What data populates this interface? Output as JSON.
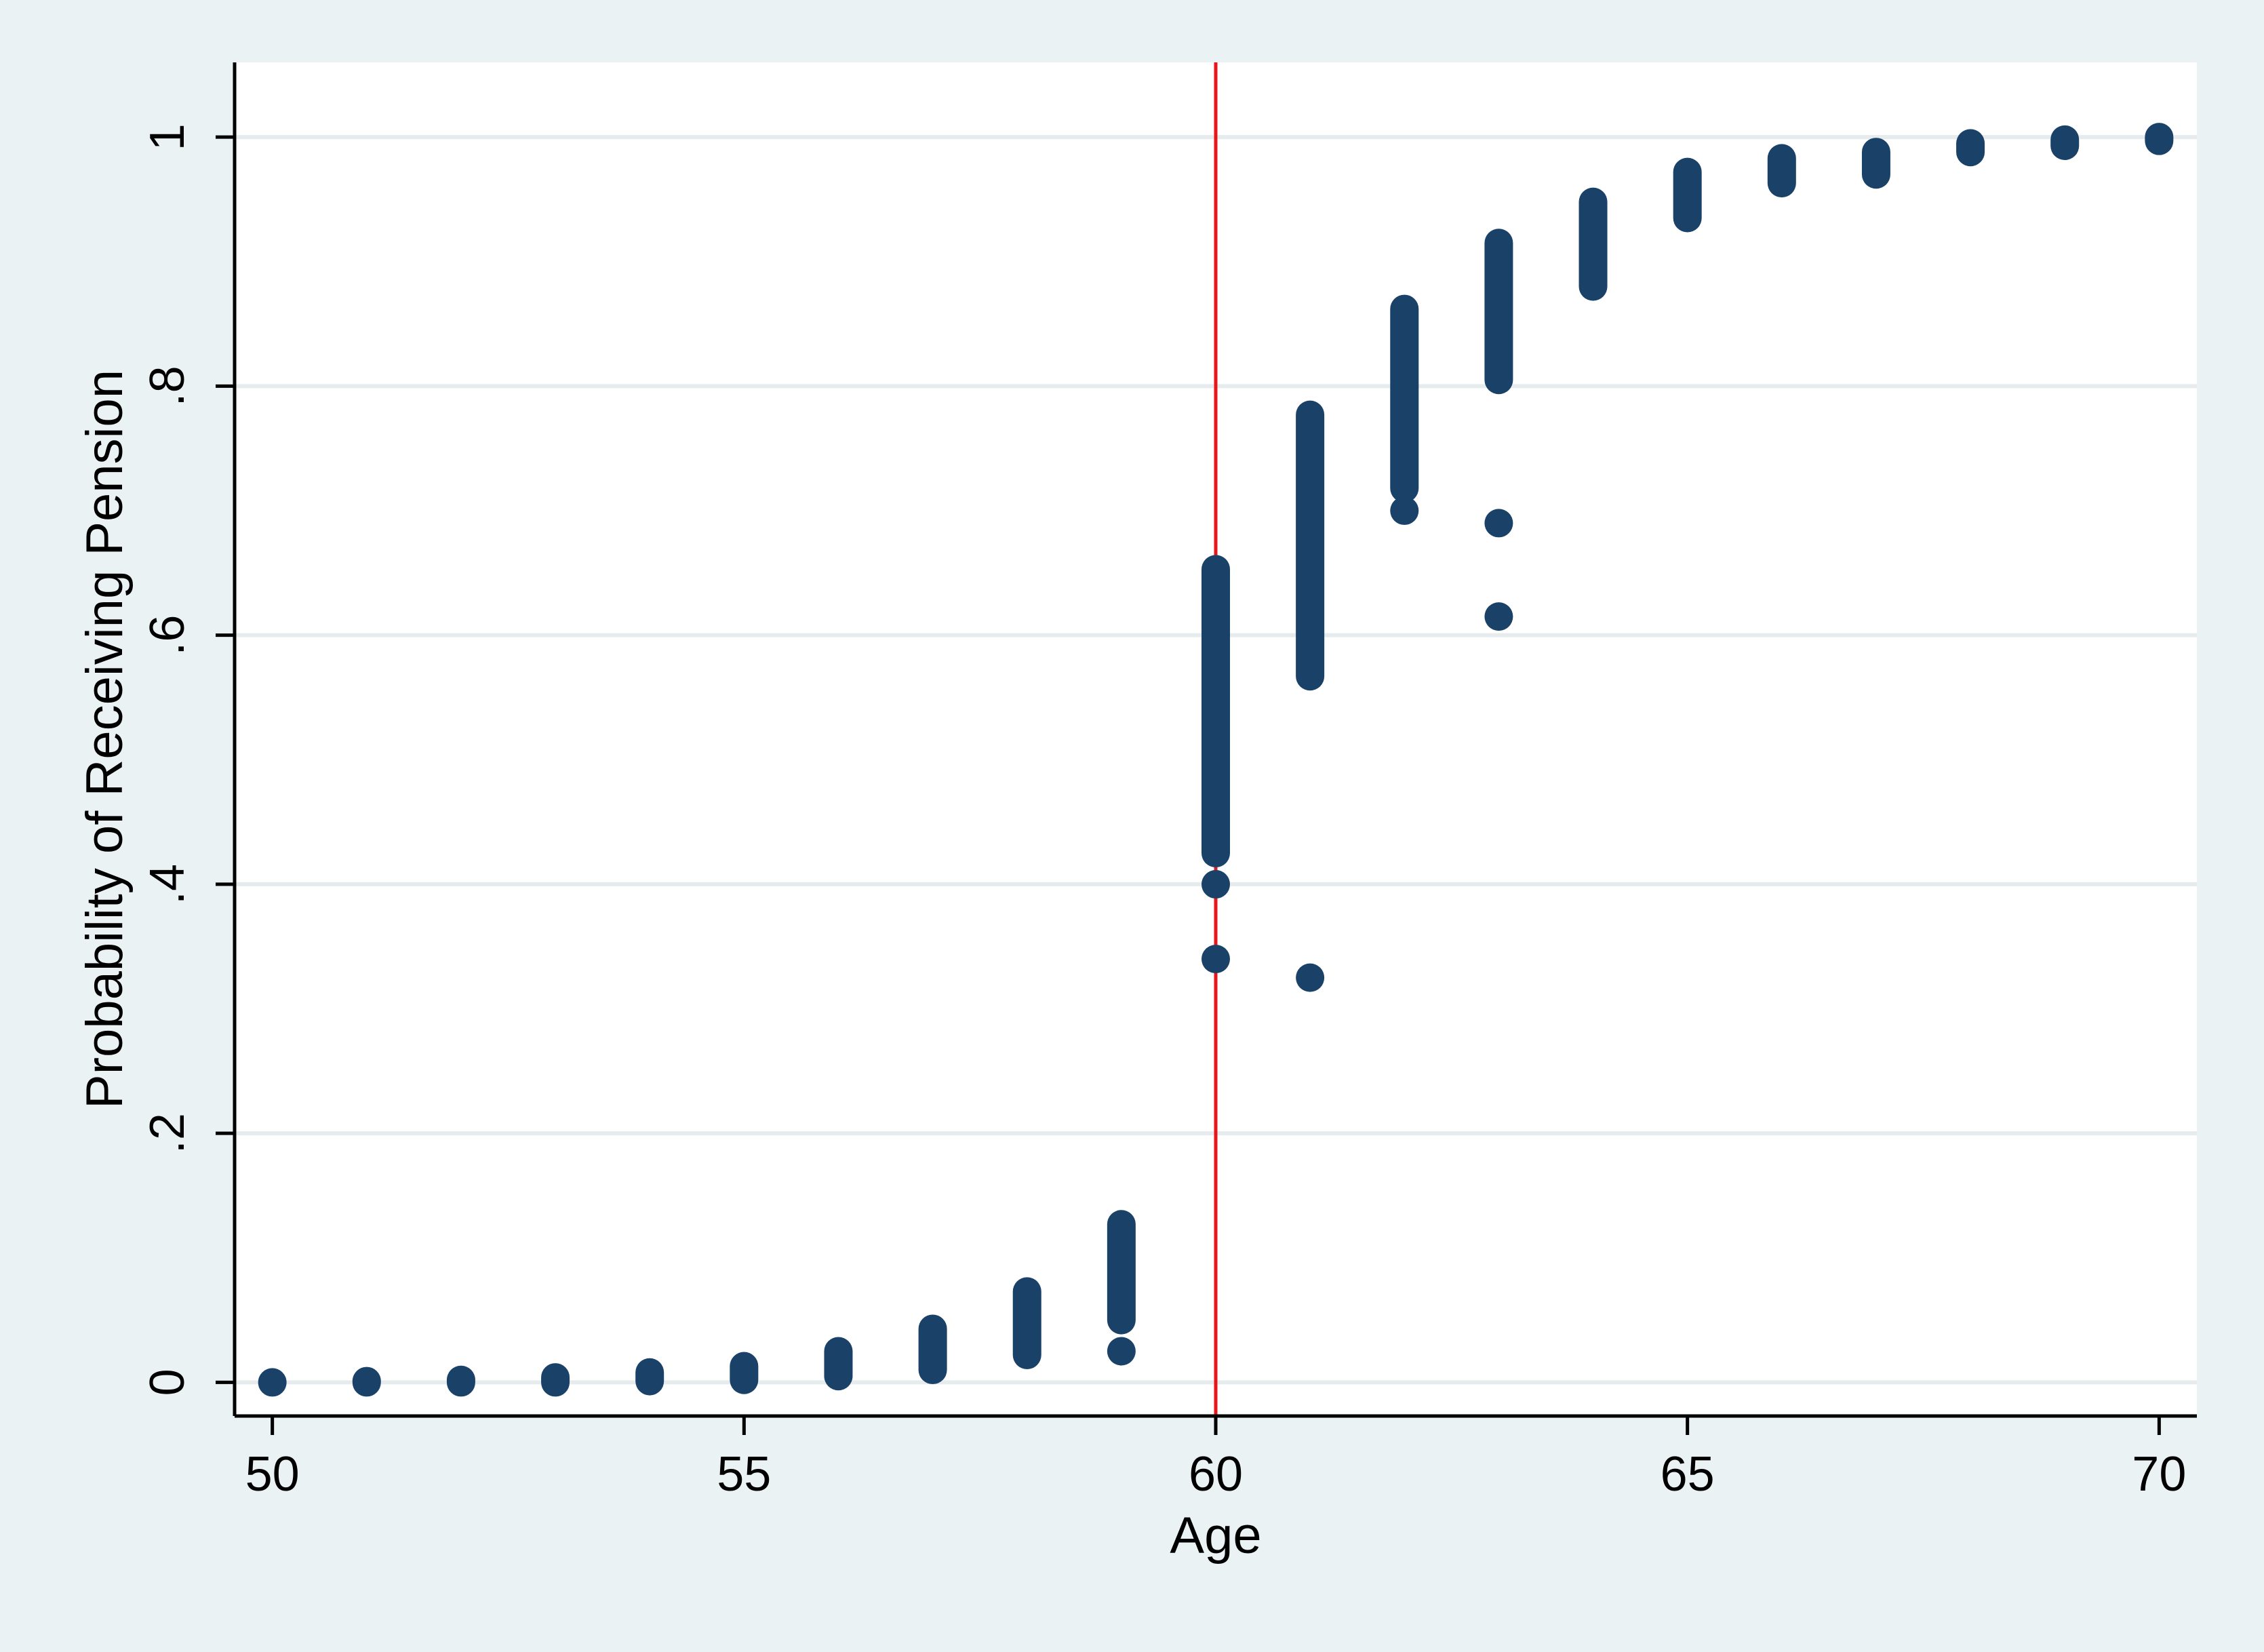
{
  "chart_data": {
    "type": "scatter",
    "title": "",
    "xlabel": "Age",
    "ylabel": "Probability of Receiving Pension",
    "xlim": [
      49.6,
      70.4
    ],
    "ylim": [
      -0.027,
      1.06
    ],
    "x_ticks": [
      50,
      55,
      60,
      65,
      70
    ],
    "x_tick_labels": [
      "50",
      "55",
      "60",
      "65",
      "70"
    ],
    "y_ticks": [
      0,
      0.2,
      0.4,
      0.6,
      0.8,
      1
    ],
    "y_tick_labels": [
      "0",
      ".2",
      ".4",
      ".6",
      ".8",
      "1"
    ],
    "grid": "horizontal",
    "legend": "none",
    "reference_line": {
      "x": 60,
      "color": "#e8161b"
    },
    "marker_color": "#1a4268",
    "series": [
      {
        "points": [
          {
            "x": 50,
            "y_min": 0.0,
            "y_max": 0.0,
            "outliers": []
          },
          {
            "x": 51,
            "y_min": 0.0,
            "y_max": 0.001,
            "outliers": []
          },
          {
            "x": 52,
            "y_min": 0.0,
            "y_max": 0.002,
            "outliers": []
          },
          {
            "x": 53,
            "y_min": 0.0,
            "y_max": 0.004,
            "outliers": []
          },
          {
            "x": 54,
            "y_min": 0.001,
            "y_max": 0.008,
            "outliers": []
          },
          {
            "x": 55,
            "y_min": 0.002,
            "y_max": 0.013,
            "outliers": []
          },
          {
            "x": 56,
            "y_min": 0.005,
            "y_max": 0.025,
            "outliers": []
          },
          {
            "x": 57,
            "y_min": 0.01,
            "y_max": 0.043,
            "outliers": []
          },
          {
            "x": 58,
            "y_min": 0.022,
            "y_max": 0.073,
            "outliers": []
          },
          {
            "x": 59,
            "y_min": 0.05,
            "y_max": 0.127,
            "outliers": [
              0.025
            ]
          },
          {
            "x": 60,
            "y_min": 0.425,
            "y_max": 0.653,
            "outliers": [
              0.4,
              0.34
            ]
          },
          {
            "x": 61,
            "y_min": 0.567,
            "y_max": 0.777,
            "outliers": [
              0.325
            ]
          },
          {
            "x": 62,
            "y_min": 0.718,
            "y_max": 0.862,
            "outliers": [
              0.7
            ]
          },
          {
            "x": 63,
            "y_min": 0.805,
            "y_max": 0.915,
            "outliers": [
              0.69,
              0.615
            ]
          },
          {
            "x": 64,
            "y_min": 0.88,
            "y_max": 0.948,
            "outliers": []
          },
          {
            "x": 65,
            "y_min": 0.935,
            "y_max": 0.972,
            "outliers": []
          },
          {
            "x": 66,
            "y_min": 0.963,
            "y_max": 0.983,
            "outliers": []
          },
          {
            "x": 67,
            "y_min": 0.97,
            "y_max": 0.988,
            "outliers": []
          },
          {
            "x": 68,
            "y_min": 0.988,
            "y_max": 0.995,
            "outliers": []
          },
          {
            "x": 69,
            "y_min": 0.993,
            "y_max": 0.998,
            "outliers": []
          },
          {
            "x": 70,
            "y_min": 0.997,
            "y_max": 1.0,
            "outliers": []
          }
        ]
      }
    ]
  }
}
